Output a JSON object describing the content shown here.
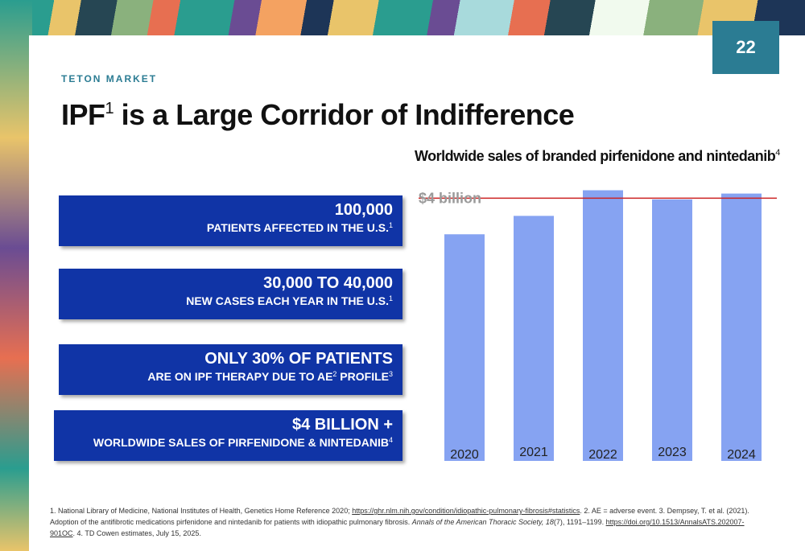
{
  "page": {
    "number": "22",
    "kicker": "TETON MARKET",
    "title_main": "IPF",
    "title_sup": "1",
    "title_rest": " is a Large Corridor of Indifference"
  },
  "stats": [
    {
      "big": "100,000",
      "small": "PATIENTS AFFECTED IN THE U.S.",
      "sup": "1",
      "sup2": "",
      "small2": ""
    },
    {
      "big": "30,000 TO 40,000",
      "small": "NEW CASES EACH YEAR IN THE U.S.",
      "sup": "1",
      "sup2": "",
      "small2": ""
    },
    {
      "big": "ONLY 30% OF PATIENTS",
      "small": "ARE ON IPF THERAPY DUE TO AE",
      "sup": "2",
      "small2": " PROFILE",
      "sup2": "3"
    },
    {
      "big": "$4 BILLION +",
      "small": "WORLDWIDE SALES OF PIRFENIDONE & NINTEDANIB",
      "sup": "4",
      "sup2": "",
      "small2": ""
    }
  ],
  "chart_title": {
    "text": "Worldwide sales of branded pirfenidone and nintedanib",
    "sup": "4"
  },
  "chart_data": {
    "type": "bar",
    "categories": [
      "2020",
      "2021",
      "2022",
      "2023",
      "2024"
    ],
    "values": [
      3.45,
      3.73,
      4.12,
      3.98,
      4.07
    ],
    "reference_line": {
      "label": "$4 billion",
      "value": 4.0
    },
    "ylim": [
      0,
      4.2
    ],
    "title": "Worldwide sales of branded pirfenidone and nintedanib",
    "xlabel": "",
    "ylabel": "",
    "grid": false,
    "colors": {
      "bar": "#86a3f2",
      "reference_line": "#cc2222",
      "reference_label": "#9a9a9a"
    }
  },
  "footnote": {
    "p1": "1. National Library of Medicine, National Institutes of Health, Genetics Home Reference 2020; ",
    "link1": "https://ghr.nlm.nih.gov/condition/idiopathic-pulmonary-fibrosis#statistics",
    "p2": ". 2. AE = adverse event. 3. Dempsey, T. et al. (2021). Adoption of the antifibrotic medications pirfenidone and nintedanib for patients with idiopathic pulmonary fibrosis. ",
    "journal": "Annals of the American Thoracic Society, 18",
    "p3": "(7), 1191–1199. ",
    "link2": "https://doi.org/10.1513/AnnalsATS.202007-901OC",
    "p4": ". 4. TD Cowen estimates, July 15, 2025."
  },
  "colors": {
    "stat_box": "#1034a6",
    "page_badge": "#2b7c93",
    "kicker": "#2b7c93"
  }
}
